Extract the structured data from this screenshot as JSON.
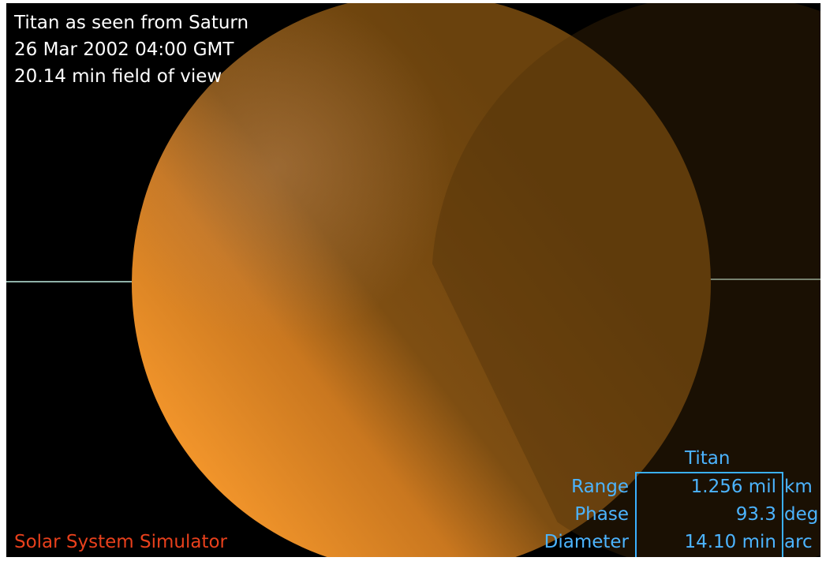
{
  "overlay": {
    "lines": [
      "Titan as seen from Saturn",
      "26 Mar 2002 04:00 GMT",
      "20.14 min field of view"
    ]
  },
  "footer": {
    "label": "Solar System Simulator"
  },
  "info_panel": {
    "title": "Titan",
    "rows": [
      [
        "Range",
        "1.256 mil",
        "km"
      ],
      [
        "Phase",
        "93.3",
        "deg"
      ],
      [
        "Diameter",
        "14.10 min",
        "arc"
      ]
    ]
  }
}
